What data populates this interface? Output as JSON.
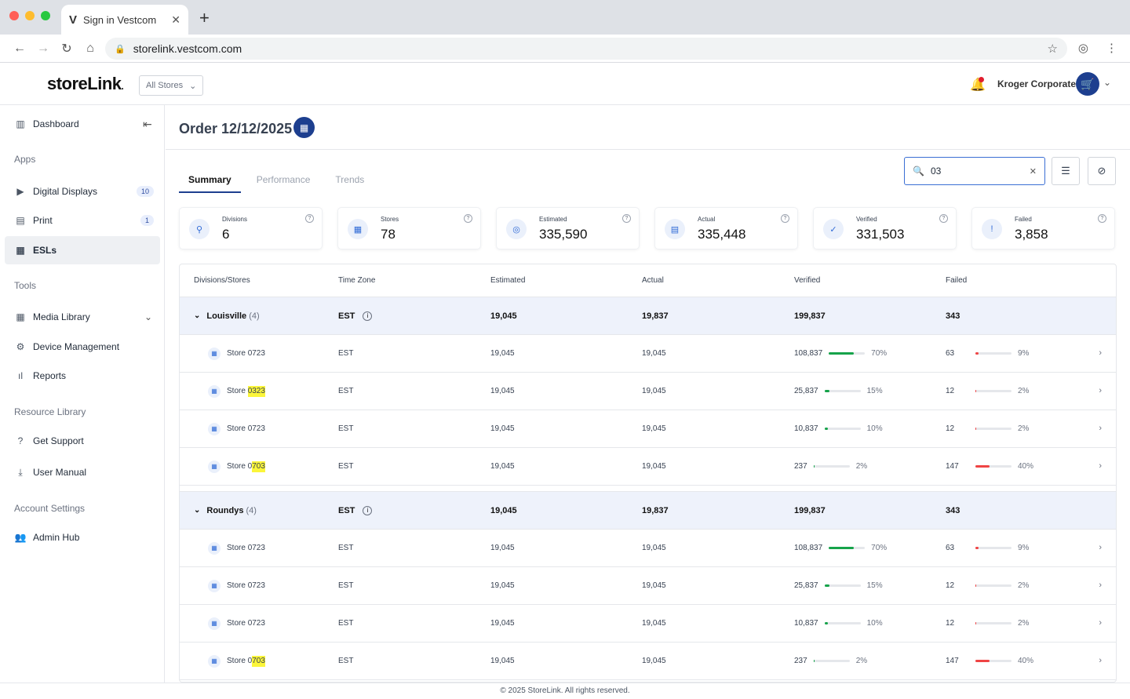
{
  "browser": {
    "tab_title": "Sign in Vestcom",
    "url": "storelink.vestcom.com"
  },
  "header": {
    "logo": "storeLink",
    "logo_suffix": ".",
    "store_filter": "All Stores",
    "org_name": "Kroger Corporate"
  },
  "sidebar": {
    "dashboard": "Dashboard",
    "apps_title": "Apps",
    "digital_displays": "Digital Displays",
    "digital_displays_badge": "10",
    "print": "Print",
    "print_badge": "1",
    "esls": "ESLs",
    "tools_title": "Tools",
    "media_library": "Media Library",
    "device_management": "Device Management",
    "reports": "Reports",
    "resource_title": "Resource Library",
    "get_support": "Get Support",
    "user_manual": "User Manual",
    "account_title": "Account Settings",
    "admin_hub": "Admin Hub"
  },
  "main": {
    "title": "Order 12/12/2025",
    "tabs": [
      "Summary",
      "Performance",
      "Trends"
    ],
    "search_value": "03",
    "cards": [
      {
        "label": "Divisions",
        "value": "6",
        "icon": "people-icon"
      },
      {
        "label": "Stores",
        "value": "78",
        "icon": "store-icon"
      },
      {
        "label": "Estimated",
        "value": "335,590",
        "icon": "estimate-icon"
      },
      {
        "label": "Actual",
        "value": "335,448",
        "icon": "document-icon"
      },
      {
        "label": "Verified",
        "value": "331,503",
        "icon": "verified-icon"
      },
      {
        "label": "Failed",
        "value": "3,858",
        "icon": "alert-icon"
      }
    ],
    "columns": [
      "Divisions/Stores",
      "Time Zone",
      "Estimated",
      "Actual",
      "Verified",
      "Failed"
    ],
    "groups": [
      {
        "name": "Louisville",
        "count": "(4)",
        "tz": "EST",
        "est": "19,045",
        "act": "19,837",
        "ver": "199,837",
        "fail": "343",
        "rows": [
          {
            "pre": "Store ",
            "hl": "",
            "post": "0723",
            "tz": "EST",
            "est": "19,045",
            "act": "19,045",
            "ver": "108,837",
            "ver_pct": "70%",
            "ver_frac": 0.7,
            "fail": "63",
            "fail_pct": "9%",
            "fail_frac": 0.09
          },
          {
            "pre": "Store ",
            "hl": "0323",
            "post": "",
            "tz": "EST",
            "est": "19,045",
            "act": "19,045",
            "ver": "25,837",
            "ver_pct": "15%",
            "ver_frac": 0.15,
            "fail": "12",
            "fail_pct": "2%",
            "fail_frac": 0.02
          },
          {
            "pre": "Store ",
            "hl": "",
            "post": "0723",
            "tz": "EST",
            "est": "19,045",
            "act": "19,045",
            "ver": "10,837",
            "ver_pct": "10%",
            "ver_frac": 0.1,
            "fail": "12",
            "fail_pct": "2%",
            "fail_frac": 0.02
          },
          {
            "pre": "Store 0",
            "hl": "703",
            "post": "",
            "tz": "EST",
            "est": "19,045",
            "act": "19,045",
            "ver": "237",
            "ver_pct": "2%",
            "ver_frac": 0.02,
            "fail": "147",
            "fail_pct": "40%",
            "fail_frac": 0.4
          }
        ]
      },
      {
        "name": "Roundys",
        "count": "(4)",
        "tz": "EST",
        "est": "19,045",
        "act": "19,837",
        "ver": "199,837",
        "fail": "343",
        "rows": [
          {
            "pre": "Store ",
            "hl": "",
            "post": "0723",
            "tz": "EST",
            "est": "19,045",
            "act": "19,045",
            "ver": "108,837",
            "ver_pct": "70%",
            "ver_frac": 0.7,
            "fail": "63",
            "fail_pct": "9%",
            "fail_frac": 0.09
          },
          {
            "pre": "Store ",
            "hl": "",
            "post": "0723",
            "tz": "EST",
            "est": "19,045",
            "act": "19,045",
            "ver": "25,837",
            "ver_pct": "15%",
            "ver_frac": 0.15,
            "fail": "12",
            "fail_pct": "2%",
            "fail_frac": 0.02
          },
          {
            "pre": "Store ",
            "hl": "",
            "post": "0723",
            "tz": "EST",
            "est": "19,045",
            "act": "19,045",
            "ver": "10,837",
            "ver_pct": "10%",
            "ver_frac": 0.1,
            "fail": "12",
            "fail_pct": "2%",
            "fail_frac": 0.02
          },
          {
            "pre": "Store 0",
            "hl": "703",
            "post": "",
            "tz": "EST",
            "est": "19,045",
            "act": "19,045",
            "ver": "237",
            "ver_pct": "2%",
            "ver_frac": 0.02,
            "fail": "147",
            "fail_pct": "40%",
            "fail_frac": 0.4
          }
        ]
      }
    ]
  },
  "footer": "© 2025 StoreLink. All rights reserved.",
  "colors": {
    "brand": "#1d3f8f",
    "verified_bar": "#16a34a",
    "failed_bar": "#ef4444"
  }
}
